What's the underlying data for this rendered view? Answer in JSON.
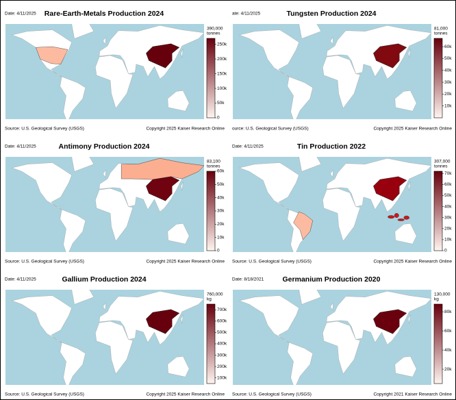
{
  "chart_data": [
    {
      "type": "choropleth",
      "title": "Rare-Earth-Metals Production 2024",
      "date": "Date: 4/11/2025",
      "colorbar_max_label": "390,000",
      "unit": "tonnes",
      "clim": [
        0,
        270000
      ],
      "ticks": [
        0,
        {
          "value": 50000,
          "label": "50k"
        },
        {
          "value": 100000,
          "label": "100k"
        },
        {
          "value": 150000,
          "label": "150k"
        },
        {
          "value": 200000,
          "label": "200k"
        },
        {
          "value": 250000,
          "label": "250k"
        }
      ],
      "colors": [
        "#fff5f0",
        "#67000d"
      ],
      "source": "Source: U.S. Geological Survey (USGS)",
      "copyright": "Copyright 2025 Kaiser Research Online"
    },
    {
      "type": "choropleth",
      "title": "Tungsten Production 2024",
      "date": "ate: 4/11/2025",
      "colorbar_max_label": "81,000",
      "unit": "tonnes",
      "clim": [
        0,
        67000
      ],
      "ticks": [
        {
          "value": 10000,
          "label": "10k"
        },
        {
          "value": 20000,
          "label": "20k"
        },
        {
          "value": 30000,
          "label": "30k"
        },
        {
          "value": 40000,
          "label": "40k"
        },
        {
          "value": 50000,
          "label": "50k"
        },
        {
          "value": 60000,
          "label": "60k"
        }
      ],
      "colors": [
        "#fff5f0",
        "#67000d"
      ],
      "source": "ource: U.S. Geological Survey (USGS)",
      "copyright": "Copyright 2025 Kaiser Research Online"
    },
    {
      "type": "choropleth",
      "title": "Antimony Production 2024",
      "date": "Date: 4/11/2025",
      "colorbar_max_label": "83,100",
      "unit": "tonnes",
      "clim": [
        0,
        60000
      ],
      "ticks": [
        0,
        {
          "value": 10000,
          "label": "10k"
        },
        {
          "value": 20000,
          "label": "20k"
        },
        {
          "value": 30000,
          "label": "30k"
        },
        {
          "value": 40000,
          "label": "40k"
        },
        {
          "value": 50000,
          "label": "50k"
        },
        {
          "value": 60000,
          "label": "60k"
        }
      ],
      "colors": [
        "#fff5f0",
        "#67000d"
      ],
      "source": "Source: U.S. Geological Survey (USGS)",
      "copyright": "Copyright 2025 Kaiser Research Online"
    },
    {
      "type": "choropleth",
      "title": "Tin Production 2022",
      "date": "Date: 4/11/2025",
      "colorbar_max_label": "307,000",
      "unit": "tonnes",
      "clim": [
        0,
        72000
      ],
      "ticks": [
        0,
        {
          "value": 10000,
          "label": "10k"
        },
        {
          "value": 20000,
          "label": "20k"
        },
        {
          "value": 30000,
          "label": "30k"
        },
        {
          "value": 40000,
          "label": "40k"
        },
        {
          "value": 50000,
          "label": "50k"
        },
        {
          "value": 60000,
          "label": "60k"
        },
        {
          "value": 70000,
          "label": "70k"
        }
      ],
      "colors": [
        "#fff5f0",
        "#67000d"
      ],
      "source": "Source: U.S. Geological Survey (USGS)",
      "copyright": "Copyright 2025 Kaiser Research Online"
    },
    {
      "type": "choropleth",
      "title": "Gallium Production 2024",
      "date": "Date: 4/11/2025",
      "colorbar_max_label": "760,000",
      "unit": "kg",
      "clim": [
        50000,
        750000
      ],
      "ticks": [
        {
          "value": 100000,
          "label": "100k"
        },
        {
          "value": 200000,
          "label": "200k"
        },
        {
          "value": 300000,
          "label": "300k"
        },
        {
          "value": 400000,
          "label": "400k"
        },
        {
          "value": 500000,
          "label": "500k"
        },
        {
          "value": 600000,
          "label": "600k"
        },
        {
          "value": 700000,
          "label": "700k"
        }
      ],
      "colors": [
        "#fff5f0",
        "#67000d"
      ],
      "source": "Source: U.S. Geological Survey (USGS)",
      "copyright": "Copyright 2025 Kaiser Research Online"
    },
    {
      "type": "choropleth",
      "title": "Germanium Production 2020",
      "date": "Date: 8/18/2021",
      "colorbar_max_label": "130,000",
      "unit": "kg",
      "clim": [
        5000,
        88000
      ],
      "ticks": [
        {
          "value": 20000,
          "label": "20k"
        },
        {
          "value": 40000,
          "label": "40k"
        },
        {
          "value": 60000,
          "label": "60k"
        },
        {
          "value": 80000,
          "label": "80k"
        }
      ],
      "colors": [
        "#fff5f0",
        "#67000d"
      ],
      "source": "Source: U.S. Geological Survey (USGS)",
      "copyright": "Copyright 2021 Kaiser Research Online"
    }
  ]
}
